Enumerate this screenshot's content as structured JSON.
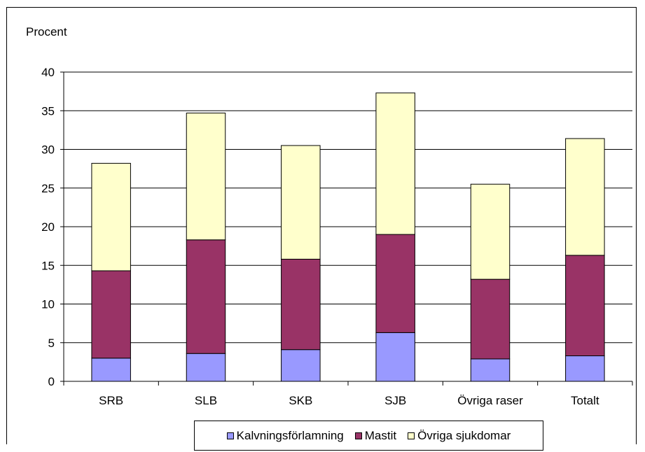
{
  "chart_data": {
    "type": "bar",
    "stacked": true,
    "ylabel": "Procent",
    "ylim": [
      0,
      40
    ],
    "yticks": [
      0,
      5,
      10,
      15,
      20,
      25,
      30,
      35,
      40
    ],
    "grid": true,
    "legend_position": "bottom",
    "categories": [
      "SRB",
      "SLB",
      "SKB",
      "SJB",
      "Övriga raser",
      "Totalt"
    ],
    "series": [
      {
        "name": "Kalvningsförlamning",
        "color": "#9999FF",
        "values": [
          3.0,
          3.6,
          4.1,
          6.3,
          2.9,
          3.3
        ]
      },
      {
        "name": "Mastit",
        "color": "#993366",
        "values": [
          11.3,
          14.7,
          11.7,
          12.7,
          10.3,
          13.0
        ]
      },
      {
        "name": "Övriga sjukdomar",
        "color": "#FFFFCC",
        "values": [
          13.9,
          16.4,
          14.7,
          18.3,
          12.3,
          15.1
        ]
      }
    ]
  }
}
